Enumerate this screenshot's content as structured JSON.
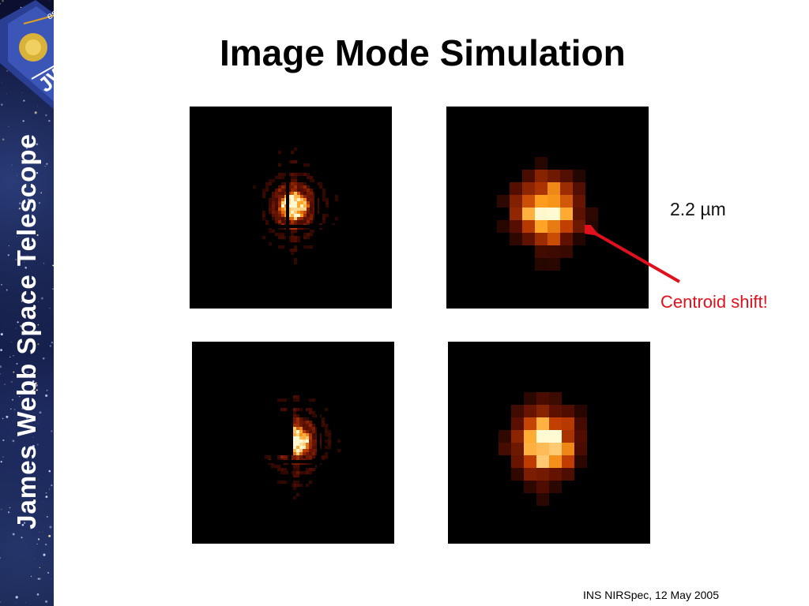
{
  "sidebar": {
    "title": "James Webb Space Telescope",
    "logo": {
      "agency_text": "esa",
      "mission_text": "JWST"
    }
  },
  "slide": {
    "title": "Image Mode Simulation",
    "wavelength_label": "2.2 µm",
    "annotation": "Centroid shift!",
    "footer": "INS NIRSpec, 12 May 2005"
  },
  "colors": {
    "annotation": "#e0101c",
    "psf_core": "#fff7c0",
    "psf_mid": "#ff9a1a",
    "psf_outer": "#7a1800",
    "background": "#000000"
  }
}
